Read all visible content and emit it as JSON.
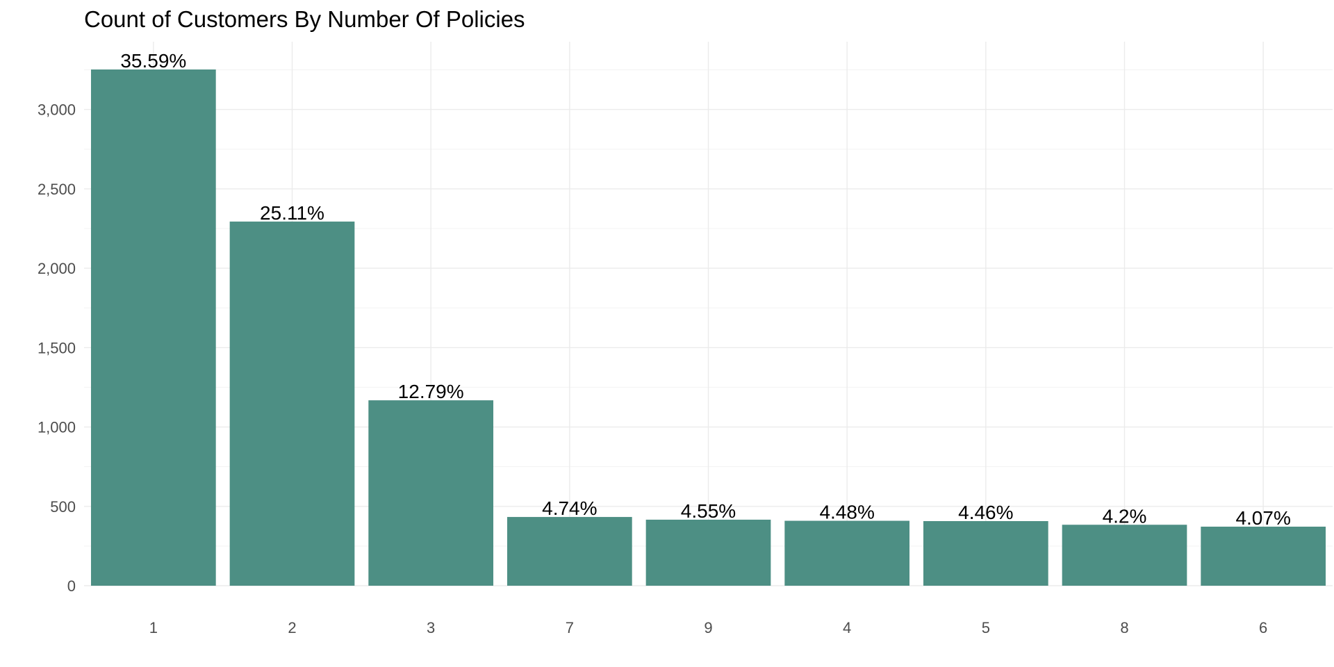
{
  "chart_data": {
    "type": "bar",
    "title": "Count of Customers By Number Of Policies",
    "xlabel": "",
    "ylabel": "",
    "categories": [
      "1",
      "2",
      "3",
      "7",
      "9",
      "4",
      "5",
      "8",
      "6"
    ],
    "values": [
      3252,
      2294,
      1168,
      433,
      416,
      409,
      407,
      384,
      372
    ],
    "data_labels": [
      "35.59%",
      "25.11%",
      "12.79%",
      "4.74%",
      "4.55%",
      "4.48%",
      "4.46%",
      "4.2%",
      "4.07%"
    ],
    "ylim": [
      0,
      3252
    ],
    "yticks": [
      0,
      500,
      1000,
      1500,
      2000,
      2500,
      3000
    ],
    "ytick_labels": [
      "0",
      "500",
      "1,000",
      "1,500",
      "2,000",
      "2,500",
      "3,000"
    ],
    "grid": true,
    "bar_color": "#4d8f84"
  }
}
